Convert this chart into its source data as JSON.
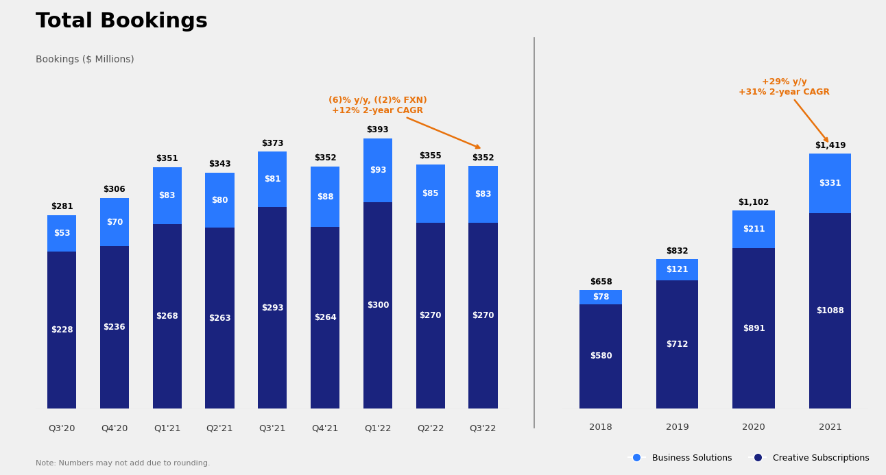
{
  "title": "Total Bookings",
  "subtitle": "Bookings ($ Millions)",
  "note": "Note: Numbers may not add due to rounding.",
  "background_color": "#f0f0f0",
  "quarterly": {
    "labels": [
      "Q3'20",
      "Q4'20",
      "Q1'21",
      "Q2'21",
      "Q3'21",
      "Q4'21",
      "Q1'22",
      "Q2'22",
      "Q3'22"
    ],
    "creative": [
      228,
      236,
      268,
      263,
      293,
      264,
      300,
      270,
      270
    ],
    "business": [
      53,
      70,
      83,
      80,
      81,
      88,
      93,
      85,
      83
    ],
    "totals": [
      281,
      306,
      351,
      343,
      373,
      352,
      393,
      355,
      352
    ]
  },
  "annual": {
    "labels": [
      "2018",
      "2019",
      "2020",
      "2021"
    ],
    "creative": [
      580,
      712,
      891,
      1088
    ],
    "business": [
      78,
      121,
      211,
      331
    ],
    "totals": [
      658,
      832,
      1102,
      1419
    ]
  },
  "annotation_q_color": "#e8720c",
  "annotation_a_color": "#e8720c",
  "colors": {
    "creative": "#1a237e",
    "business": "#2979ff",
    "divider": "#888888"
  },
  "legend": {
    "business_label": "Business Solutions",
    "creative_label": "Creative Subscriptions",
    "business_color": "#2979ff",
    "creative_color": "#1a237e"
  }
}
